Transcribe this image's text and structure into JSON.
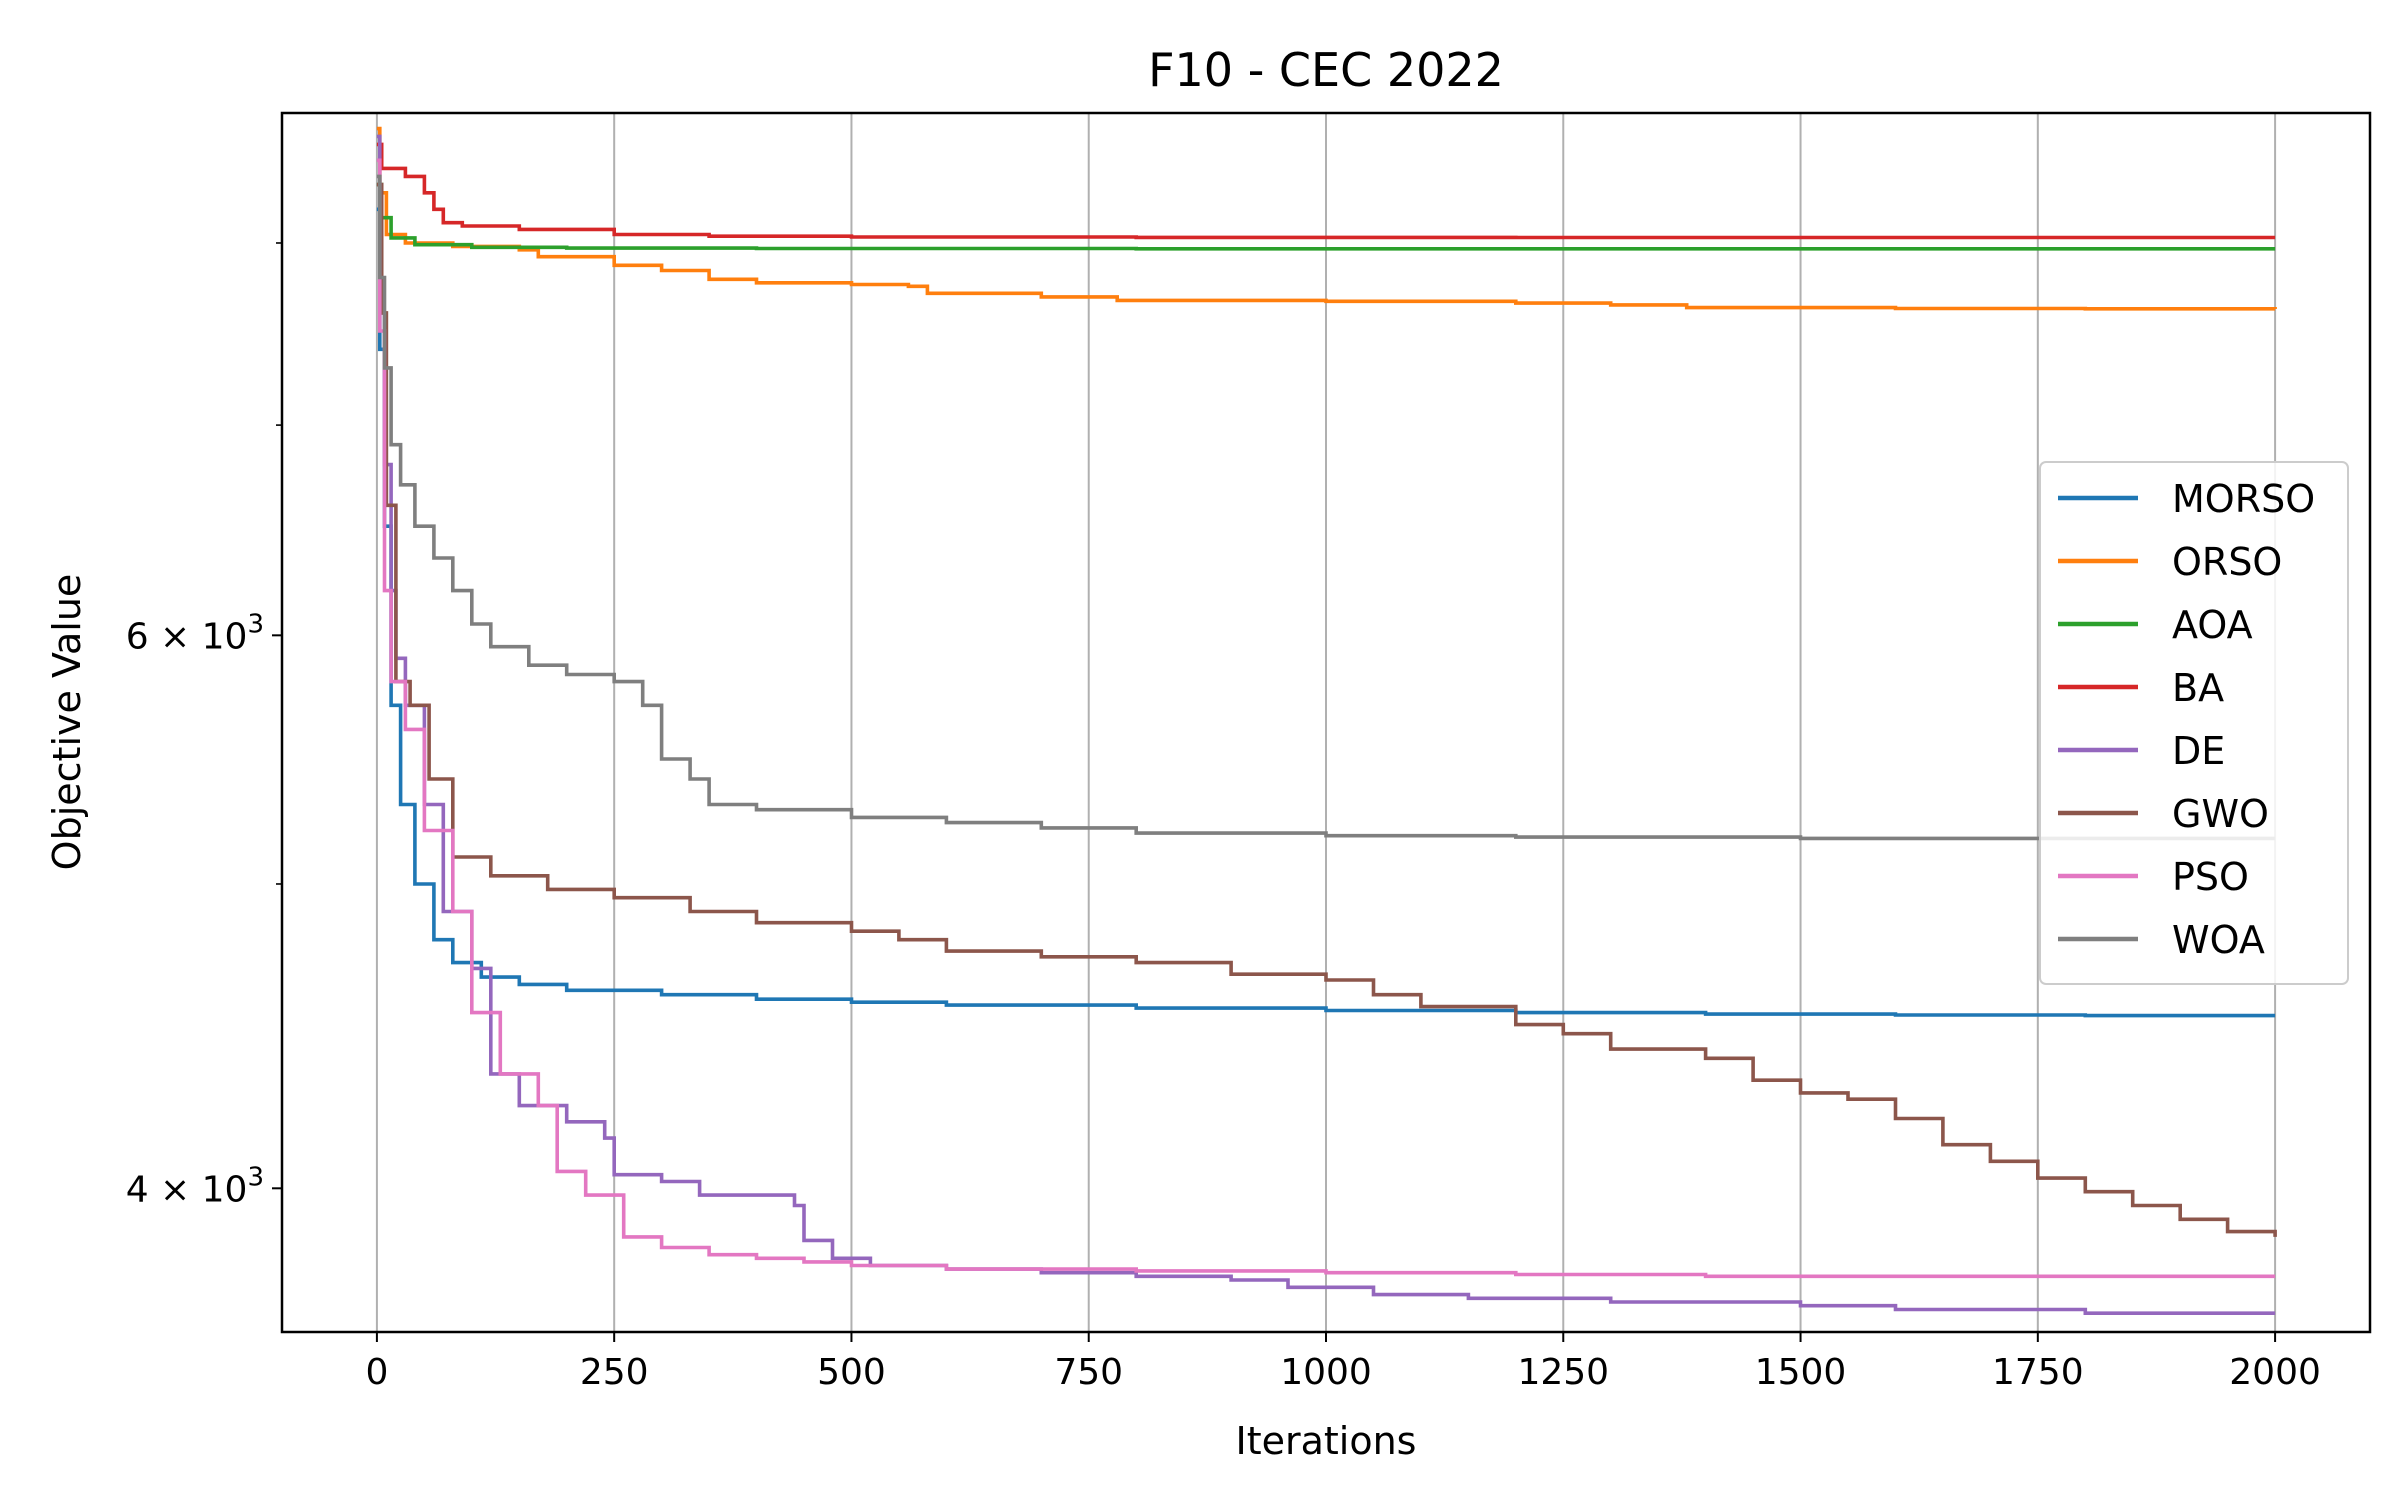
{
  "chart_data": {
    "type": "line",
    "title": "F10 - CEC 2022",
    "xlabel": "Iterations",
    "ylabel": "Objective Value",
    "yscale": "log",
    "xlim": [
      -100,
      2100
    ],
    "ylim": [
      3600,
      8800
    ],
    "grid": "vertical",
    "legend_position": "right",
    "x_ticks": [
      0,
      250,
      500,
      750,
      1000,
      1250,
      1500,
      1750,
      2000
    ],
    "x_tick_labels": [
      "0",
      "250",
      "500",
      "750",
      "1000",
      "1250",
      "1500",
      "1750",
      "2000"
    ],
    "y_ticks": [
      {
        "value": 4000,
        "label": "4 × 10",
        "exp": "3"
      },
      {
        "value": 6000,
        "label": "6 × 10",
        "exp": "3"
      }
    ],
    "y_minor_ticks": [
      5000,
      7000,
      8000
    ],
    "series": [
      {
        "name": "MORSO",
        "color": "#1f77b4",
        "points": [
          [
            0,
            8200
          ],
          [
            3,
            7400
          ],
          [
            8,
            6500
          ],
          [
            15,
            5700
          ],
          [
            25,
            5300
          ],
          [
            40,
            5000
          ],
          [
            60,
            4800
          ],
          [
            80,
            4720
          ],
          [
            110,
            4670
          ],
          [
            150,
            4645
          ],
          [
            200,
            4625
          ],
          [
            300,
            4610
          ],
          [
            400,
            4595
          ],
          [
            500,
            4585
          ],
          [
            600,
            4575
          ],
          [
            800,
            4565
          ],
          [
            1000,
            4557
          ],
          [
            1200,
            4550
          ],
          [
            1400,
            4545
          ],
          [
            1600,
            4542
          ],
          [
            1800,
            4540
          ],
          [
            2000,
            4540
          ]
        ]
      },
      {
        "name": "ORSO",
        "color": "#ff7f0e",
        "points": [
          [
            0,
            8700
          ],
          [
            3,
            8300
          ],
          [
            10,
            8050
          ],
          [
            30,
            8000
          ],
          [
            80,
            7980
          ],
          [
            150,
            7960
          ],
          [
            170,
            7920
          ],
          [
            250,
            7870
          ],
          [
            300,
            7840
          ],
          [
            350,
            7790
          ],
          [
            400,
            7770
          ],
          [
            500,
            7760
          ],
          [
            560,
            7750
          ],
          [
            580,
            7710
          ],
          [
            700,
            7690
          ],
          [
            780,
            7670
          ],
          [
            1000,
            7665
          ],
          [
            1200,
            7655
          ],
          [
            1300,
            7645
          ],
          [
            1380,
            7630
          ],
          [
            1600,
            7625
          ],
          [
            1800,
            7623
          ],
          [
            2000,
            7622
          ]
        ]
      },
      {
        "name": "AOA",
        "color": "#2ca02c",
        "points": [
          [
            0,
            8350
          ],
          [
            5,
            8150
          ],
          [
            15,
            8030
          ],
          [
            40,
            7990
          ],
          [
            100,
            7975
          ],
          [
            200,
            7970
          ],
          [
            400,
            7968
          ],
          [
            800,
            7966
          ],
          [
            1400,
            7966
          ],
          [
            2000,
            7966
          ]
        ]
      },
      {
        "name": "BA",
        "color": "#d62728",
        "points": [
          [
            0,
            8600
          ],
          [
            5,
            8450
          ],
          [
            30,
            8400
          ],
          [
            50,
            8300
          ],
          [
            60,
            8200
          ],
          [
            70,
            8120
          ],
          [
            90,
            8100
          ],
          [
            150,
            8080
          ],
          [
            250,
            8050
          ],
          [
            350,
            8040
          ],
          [
            500,
            8035
          ],
          [
            800,
            8033
          ],
          [
            1200,
            8032
          ],
          [
            1600,
            8032
          ],
          [
            2000,
            8032
          ]
        ]
      },
      {
        "name": "DE",
        "color": "#9467bd",
        "points": [
          [
            0,
            8650
          ],
          [
            3,
            7600
          ],
          [
            8,
            6800
          ],
          [
            15,
            6200
          ],
          [
            20,
            5900
          ],
          [
            30,
            5700
          ],
          [
            50,
            5300
          ],
          [
            70,
            4900
          ],
          [
            100,
            4700
          ],
          [
            120,
            4350
          ],
          [
            150,
            4250
          ],
          [
            200,
            4200
          ],
          [
            240,
            4150
          ],
          [
            250,
            4040
          ],
          [
            300,
            4020
          ],
          [
            340,
            3980
          ],
          [
            440,
            3950
          ],
          [
            450,
            3850
          ],
          [
            480,
            3800
          ],
          [
            520,
            3780
          ],
          [
            600,
            3770
          ],
          [
            700,
            3760
          ],
          [
            800,
            3750
          ],
          [
            900,
            3740
          ],
          [
            960,
            3720
          ],
          [
            1050,
            3700
          ],
          [
            1150,
            3690
          ],
          [
            1300,
            3680
          ],
          [
            1500,
            3670
          ],
          [
            1600,
            3660
          ],
          [
            1800,
            3650
          ],
          [
            2000,
            3650
          ]
        ]
      },
      {
        "name": "GWO",
        "color": "#8c564b",
        "points": [
          [
            0,
            8350
          ],
          [
            5,
            7600
          ],
          [
            10,
            6600
          ],
          [
            20,
            5800
          ],
          [
            35,
            5700
          ],
          [
            55,
            5400
          ],
          [
            80,
            5100
          ],
          [
            120,
            5030
          ],
          [
            180,
            4980
          ],
          [
            250,
            4950
          ],
          [
            330,
            4900
          ],
          [
            400,
            4860
          ],
          [
            500,
            4830
          ],
          [
            550,
            4800
          ],
          [
            600,
            4760
          ],
          [
            700,
            4740
          ],
          [
            800,
            4720
          ],
          [
            900,
            4680
          ],
          [
            1000,
            4660
          ],
          [
            1050,
            4610
          ],
          [
            1100,
            4570
          ],
          [
            1200,
            4510
          ],
          [
            1250,
            4480
          ],
          [
            1300,
            4430
          ],
          [
            1400,
            4400
          ],
          [
            1450,
            4330
          ],
          [
            1500,
            4290
          ],
          [
            1550,
            4270
          ],
          [
            1600,
            4210
          ],
          [
            1650,
            4130
          ],
          [
            1700,
            4080
          ],
          [
            1750,
            4030
          ],
          [
            1800,
            3990
          ],
          [
            1850,
            3950
          ],
          [
            1900,
            3910
          ],
          [
            1950,
            3875
          ],
          [
            2000,
            3860
          ]
        ]
      },
      {
        "name": "PSO",
        "color": "#e377c2",
        "points": [
          [
            0,
            8500
          ],
          [
            3,
            7500
          ],
          [
            8,
            6200
          ],
          [
            15,
            5800
          ],
          [
            30,
            5600
          ],
          [
            50,
            5200
          ],
          [
            80,
            4900
          ],
          [
            100,
            4550
          ],
          [
            130,
            4350
          ],
          [
            170,
            4250
          ],
          [
            190,
            4050
          ],
          [
            220,
            3980
          ],
          [
            260,
            3860
          ],
          [
            300,
            3830
          ],
          [
            350,
            3810
          ],
          [
            400,
            3800
          ],
          [
            450,
            3790
          ],
          [
            500,
            3780
          ],
          [
            600,
            3770
          ],
          [
            800,
            3765
          ],
          [
            1000,
            3760
          ],
          [
            1200,
            3755
          ],
          [
            1400,
            3750
          ],
          [
            1600,
            3750
          ],
          [
            1800,
            3750
          ],
          [
            2000,
            3750
          ]
        ]
      },
      {
        "name": "WOA",
        "color": "#7f7f7f",
        "points": [
          [
            0,
            8400
          ],
          [
            3,
            7800
          ],
          [
            8,
            7300
          ],
          [
            15,
            6900
          ],
          [
            25,
            6700
          ],
          [
            40,
            6500
          ],
          [
            60,
            6350
          ],
          [
            80,
            6200
          ],
          [
            100,
            6050
          ],
          [
            120,
            5950
          ],
          [
            160,
            5870
          ],
          [
            200,
            5830
          ],
          [
            250,
            5800
          ],
          [
            280,
            5700
          ],
          [
            300,
            5480
          ],
          [
            330,
            5400
          ],
          [
            350,
            5300
          ],
          [
            400,
            5280
          ],
          [
            500,
            5250
          ],
          [
            600,
            5230
          ],
          [
            700,
            5210
          ],
          [
            800,
            5190
          ],
          [
            1000,
            5180
          ],
          [
            1200,
            5175
          ],
          [
            1500,
            5170
          ],
          [
            2000,
            5170
          ]
        ]
      }
    ]
  }
}
